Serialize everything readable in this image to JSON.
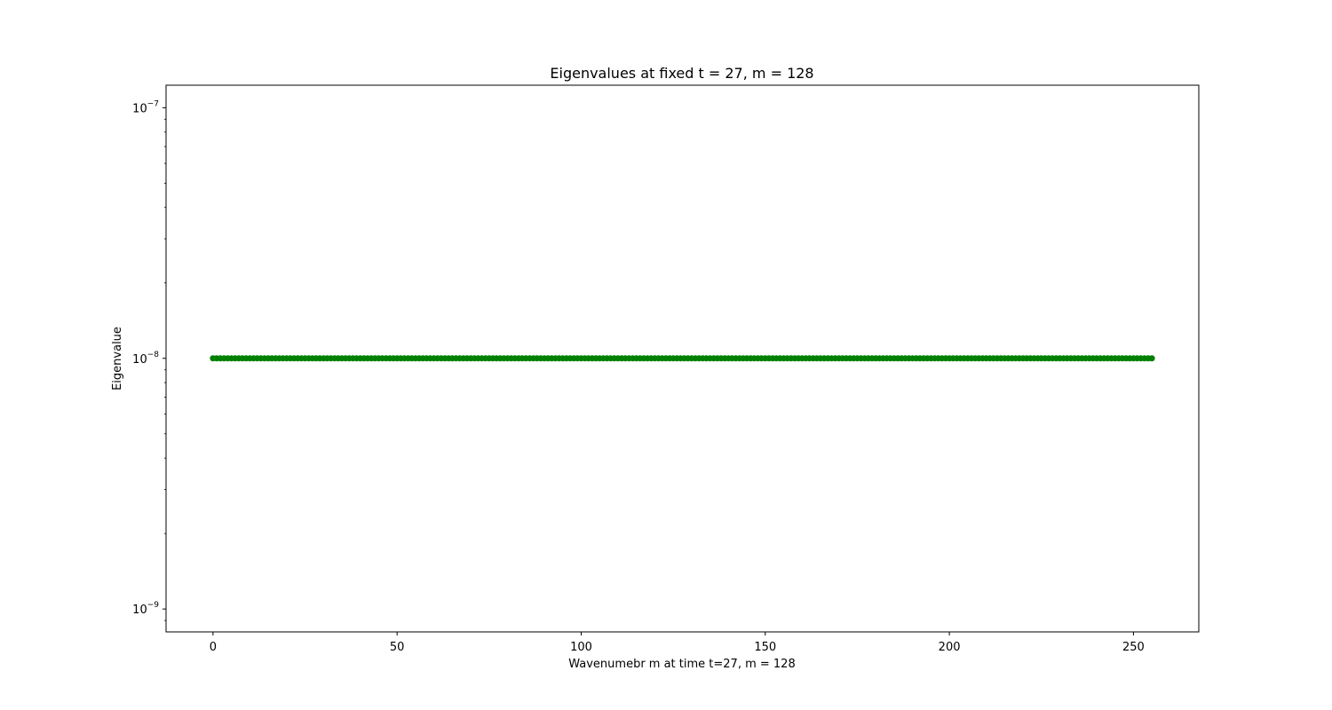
{
  "chart_data": {
    "type": "scatter",
    "title": "Eigenvalues at fixed t = 27, m = 128",
    "xlabel": "Wavenumebr m at time t=27, m = 128",
    "ylabel": "Eigenvalue",
    "xlim": [
      -12.75,
      267.75
    ],
    "ylim": [
      8.1e-10,
      1.23e-07
    ],
    "yscale": "log",
    "x_ticks": [
      0,
      50,
      100,
      150,
      200,
      250
    ],
    "x_tick_labels": [
      "0",
      "50",
      "100",
      "150",
      "200",
      "250"
    ],
    "y_ticks": [
      {
        "value": 1e-09,
        "base": "10",
        "exponent": "−9"
      },
      {
        "value": 1e-08,
        "base": "10",
        "exponent": "−8"
      },
      {
        "value": 1e-07,
        "base": "10",
        "exponent": "−7"
      }
    ],
    "grid": false,
    "marker_color": "#008000",
    "x_start": 0,
    "x_end": 255,
    "x_step": 1,
    "y_constant": 1e-08
  }
}
